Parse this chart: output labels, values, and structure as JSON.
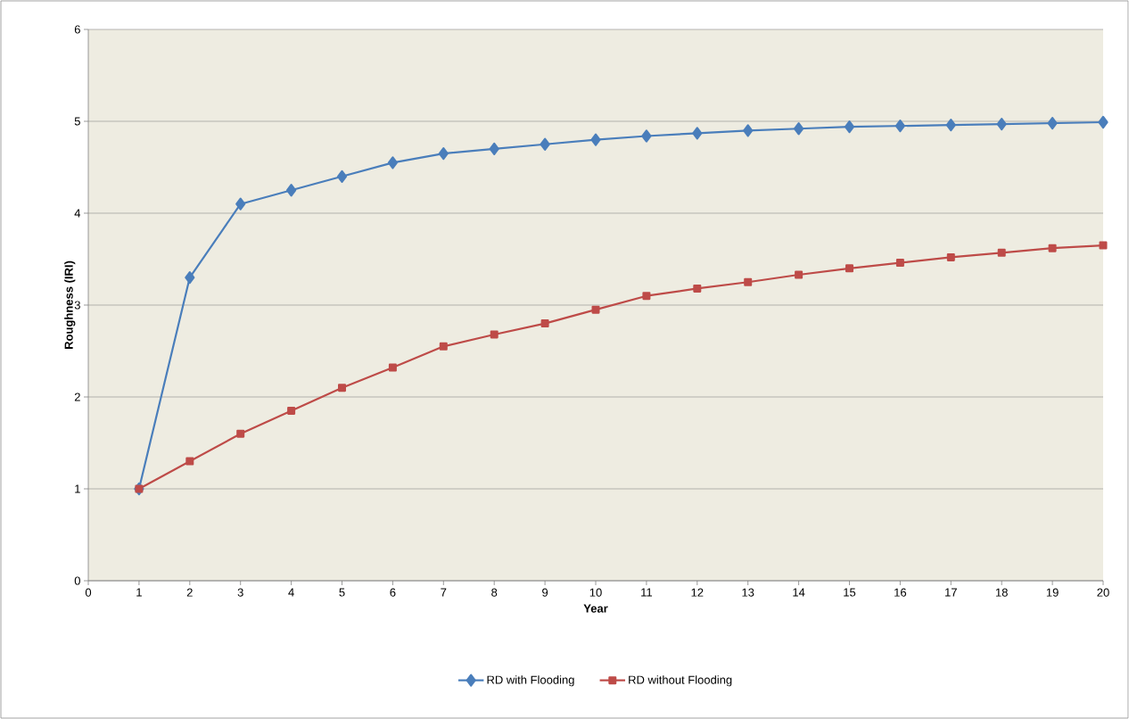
{
  "chart_data": {
    "type": "line",
    "xlabel": "Year",
    "ylabel": "Roughness (IRI)",
    "x": [
      1,
      2,
      3,
      4,
      5,
      6,
      7,
      8,
      9,
      10,
      11,
      12,
      13,
      14,
      15,
      16,
      17,
      18,
      19,
      20
    ],
    "series": [
      {
        "name": "RD with Flooding",
        "color": "#4a7ebb",
        "marker": "diamond",
        "values": [
          1.0,
          3.3,
          4.1,
          4.25,
          4.4,
          4.55,
          4.65,
          4.7,
          4.75,
          4.8,
          4.84,
          4.87,
          4.9,
          4.92,
          4.94,
          4.95,
          4.96,
          4.97,
          4.98,
          4.99
        ]
      },
      {
        "name": "RD without Flooding",
        "color": "#be4b48",
        "marker": "square",
        "values": [
          1.0,
          1.3,
          1.6,
          1.85,
          2.1,
          2.32,
          2.55,
          2.68,
          2.8,
          2.95,
          3.1,
          3.18,
          3.25,
          3.33,
          3.4,
          3.46,
          3.52,
          3.57,
          3.62,
          3.65
        ]
      }
    ],
    "xlim": [
      0,
      20
    ],
    "ylim": [
      0,
      6
    ],
    "xticks": [
      0,
      1,
      2,
      3,
      4,
      5,
      6,
      7,
      8,
      9,
      10,
      11,
      12,
      13,
      14,
      15,
      16,
      17,
      18,
      19,
      20
    ],
    "yticks": [
      0,
      1,
      2,
      3,
      4,
      5,
      6
    ],
    "grid": "y",
    "legend": "bottom",
    "line_style": "solid"
  }
}
